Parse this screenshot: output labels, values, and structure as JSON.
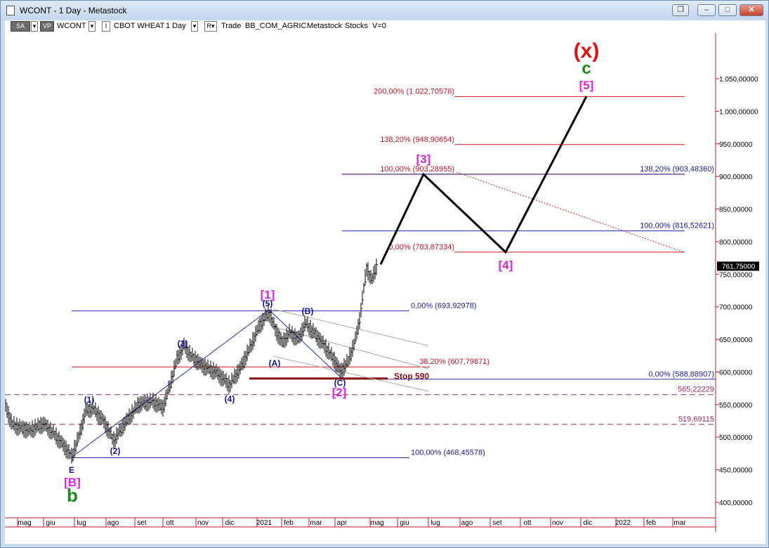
{
  "window": {
    "title": "WCONT - 1 Day - Metastock",
    "buttons": {
      "restore": "❐",
      "minimize": "–",
      "maximize": "□",
      "close": "✕"
    }
  },
  "toolbar": {
    "sa": "SA",
    "vp": "VP",
    "symbol": "WCONT",
    "i_box": "I",
    "name": "CBOT WHEAT",
    "period": "1 Day",
    "r_box": "R",
    "trade": "Trade",
    "category": "BB_COM_AGRIC",
    "source": "Metastock",
    "stocks": "Stocks",
    "v": "V=0"
  },
  "chart_data": {
    "type": "bar",
    "ylim": [
      380,
      1080
    ],
    "y_ticks": [
      "1.050,00000",
      "1.000,00000",
      "950,00000",
      "900,00000",
      "850,00000",
      "800,00000",
      "750,00000",
      "700,00000",
      "650,00000",
      "600,00000",
      "550,00000",
      "500,00000",
      "450,00000",
      "400,00000"
    ],
    "y_tick_values": [
      1050,
      1000,
      950,
      900,
      850,
      800,
      750,
      700,
      650,
      600,
      550,
      500,
      450,
      400
    ],
    "last_price": "761,75000",
    "x_labels": [
      "mag",
      "giu",
      "lug",
      "ago",
      "set",
      "ott",
      "nov",
      "dic",
      "2021",
      "feb",
      "mar",
      "apr",
      "mag",
      "giu",
      "lug",
      "ago",
      "set",
      "ott",
      "nov",
      "dic",
      "2022",
      "feb",
      "mar"
    ],
    "fib_red": [
      {
        "label": "200,00% (1.022,70576)",
        "value": 1022.7
      },
      {
        "label": "138,20% (948,90654)",
        "value": 948.9
      },
      {
        "label": "100,00% (903,28955)",
        "value": 903.3
      },
      {
        "label": "0,00% (783,87334)",
        "value": 783.9
      },
      {
        "label": "38,20% (607,79871)",
        "value": 607.8
      }
    ],
    "fib_blue": [
      {
        "label": "138,20% (903,48360)",
        "value": 903.5
      },
      {
        "label": "100,00% (816,52621)",
        "value": 816.5
      },
      {
        "label": "0,00% (693,92978)",
        "value": 693.9
      },
      {
        "label": "0,00% (588,88907)",
        "value": 588.9
      },
      {
        "label": "100,00% (468,45578)",
        "value": 468.5
      }
    ],
    "dashed_levels": [
      {
        "label": "565,22229",
        "value": 565.2
      },
      {
        "label": "519,69115",
        "value": 519.7
      }
    ],
    "stop_label": "Stop 590",
    "stop_value": 590,
    "wave_labels": {
      "x": "(x)",
      "c": "c",
      "w5": "[5]",
      "w3": "[3]",
      "w4": "[4]",
      "w1": "[1]",
      "w2": "[2]",
      "b5": "(5)",
      "bB": "(B)",
      "b3": "(3)",
      "bA": "(A)",
      "bC": "(C)",
      "b4": "(4)",
      "b1": "(1)",
      "b2": "(2)",
      "E": "E",
      "B": "[B]",
      "b": "b"
    }
  }
}
